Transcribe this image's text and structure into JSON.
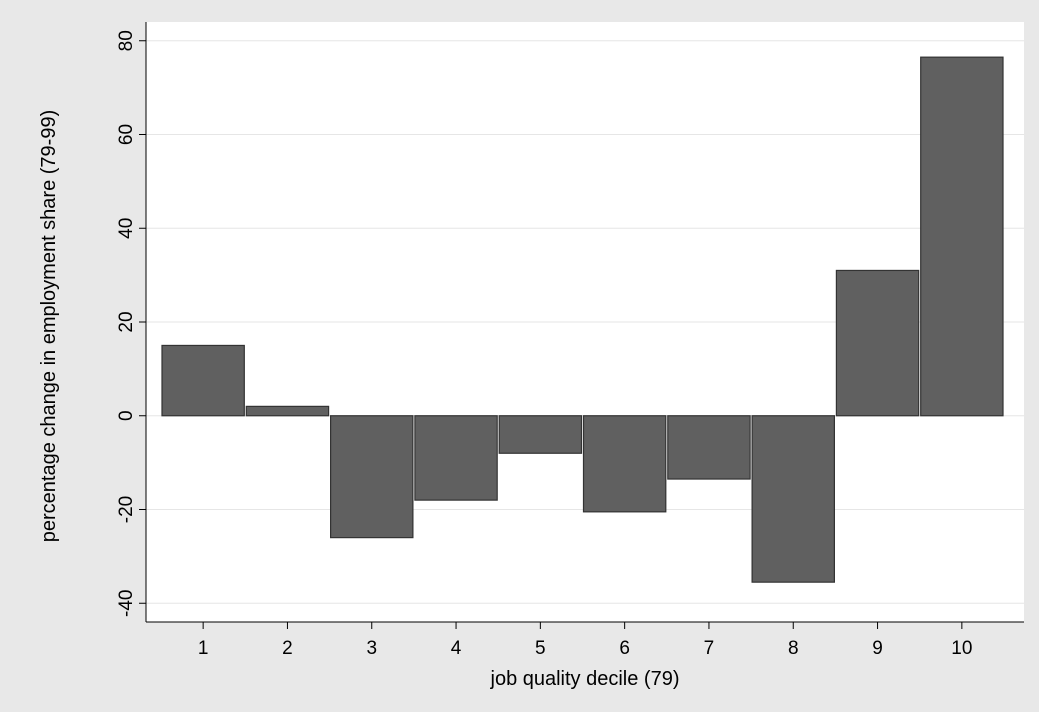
{
  "chart_data": {
    "type": "bar",
    "title": "",
    "xlabel": "job quality decile (79)",
    "ylabel": "percentage change in employment share (79-99)",
    "categories": [
      "1",
      "2",
      "3",
      "4",
      "5",
      "6",
      "7",
      "8",
      "9",
      "10"
    ],
    "values": [
      15,
      2,
      -26,
      -18,
      -8,
      -20.5,
      -13.5,
      -35.5,
      31,
      76.5
    ],
    "ylim": [
      -44,
      84
    ],
    "yticks": [
      -40,
      -20,
      0,
      20,
      40,
      60,
      80
    ],
    "ytick_labels": [
      "-40",
      "-20",
      "0",
      "20",
      "40",
      "60",
      "80"
    ],
    "grid": true,
    "colors": {
      "bar_fill": "#606060",
      "bar_stroke": "#333333",
      "plot_background": "#ffffff",
      "outer_background": "#e8e8e8",
      "grid": "#e6e6e6"
    }
  }
}
